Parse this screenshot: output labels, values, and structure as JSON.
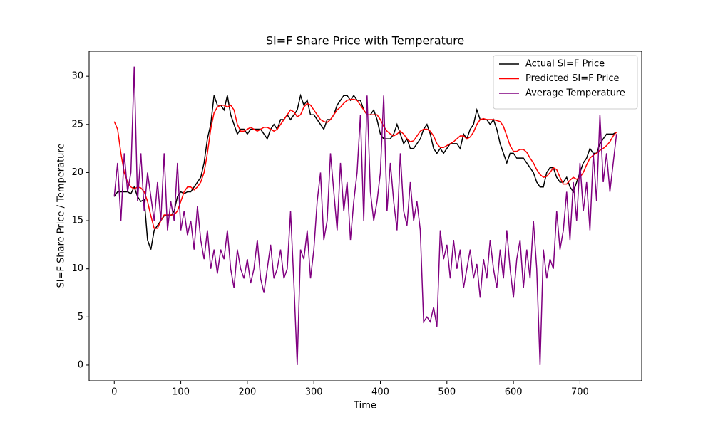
{
  "chart_data": {
    "type": "line",
    "title": "SI=F Share Price with Temperature",
    "xlabel": "Time",
    "ylabel": "SI=F Share Price / Temperature",
    "x": [
      0,
      5,
      10,
      15,
      20,
      25,
      30,
      35,
      40,
      45,
      50,
      55,
      60,
      65,
      70,
      75,
      80,
      85,
      90,
      95,
      100,
      105,
      110,
      115,
      120,
      125,
      130,
      135,
      140,
      145,
      150,
      155,
      160,
      165,
      170,
      175,
      180,
      185,
      190,
      195,
      200,
      205,
      210,
      215,
      220,
      225,
      230,
      235,
      240,
      245,
      250,
      255,
      260,
      265,
      270,
      275,
      280,
      285,
      290,
      295,
      300,
      305,
      310,
      315,
      320,
      325,
      330,
      335,
      340,
      345,
      350,
      355,
      360,
      365,
      370,
      375,
      380,
      385,
      390,
      395,
      400,
      405,
      410,
      415,
      420,
      425,
      430,
      435,
      440,
      445,
      450,
      455,
      460,
      465,
      470,
      475,
      480,
      485,
      490,
      495,
      500,
      505,
      510,
      515,
      520,
      525,
      530,
      535,
      540,
      545,
      550,
      555,
      560,
      565,
      570,
      575,
      580,
      585,
      590,
      595,
      600,
      605,
      610,
      615,
      620,
      625,
      630,
      635,
      640,
      645,
      650,
      655,
      660,
      665,
      670,
      675,
      680,
      685,
      690,
      695,
      700,
      705,
      710,
      715,
      720,
      725,
      730,
      735,
      740,
      745,
      750,
      755
    ],
    "series": [
      {
        "name": "Actual SI=F Price",
        "color": "#000000",
        "values": [
          17.5,
          18,
          18,
          18,
          18,
          17.8,
          18.5,
          17.5,
          17,
          17.2,
          13,
          12,
          14,
          14.5,
          15,
          15.5,
          15.5,
          15.5,
          16,
          17.5,
          18,
          17.8,
          18,
          18,
          18.5,
          19,
          19.5,
          21,
          23.5,
          25,
          28,
          27,
          27,
          26.5,
          28,
          26,
          25,
          24,
          24.5,
          24.5,
          24,
          24.5,
          24.5,
          24.5,
          24.5,
          24,
          23.5,
          24.5,
          25,
          24.5,
          25.5,
          25.5,
          26,
          25.5,
          26,
          26.5,
          28,
          27,
          27.5,
          26,
          26,
          25.5,
          25,
          24.5,
          25.5,
          25.5,
          26,
          27,
          27.5,
          28,
          28,
          27.5,
          28,
          27.5,
          27.5,
          26.5,
          26,
          26,
          26.5,
          25.5,
          24,
          23.5,
          23.5,
          23.5,
          24,
          25,
          24,
          23,
          23.5,
          22.5,
          22.5,
          23,
          23.5,
          24.5,
          25,
          24,
          22.5,
          22,
          22.5,
          22,
          22.5,
          23,
          23,
          23,
          22.5,
          24,
          23.5,
          24.5,
          25,
          26.5,
          25.5,
          25.5,
          25.5,
          25,
          25.5,
          24.5,
          23,
          22,
          21,
          22,
          22,
          21.5,
          21.5,
          21.5,
          21,
          20.5,
          20,
          19,
          18.5,
          18.5,
          20,
          20.5,
          20.5,
          19.5,
          19,
          19,
          19.5,
          18.5,
          18,
          19,
          20,
          21,
          21.5,
          22.5,
          22,
          22,
          23,
          23.5,
          24,
          24,
          24,
          24.2
        ]
      },
      {
        "name": "Predicted SI=F Price",
        "color": "#ff0000",
        "values": [
          25.3,
          24.5,
          22,
          20,
          19,
          18.5,
          18.3,
          18.5,
          18.4,
          18,
          17,
          15.5,
          14.2,
          14.2,
          15,
          15.6,
          15.6,
          15.6,
          15.6,
          16,
          17,
          18,
          18.5,
          18.5,
          18.2,
          18.5,
          19,
          20,
          22,
          24.5,
          26.2,
          26.8,
          27,
          27,
          26.8,
          27,
          26.5,
          25,
          24.3,
          24.3,
          24.5,
          24.7,
          24.5,
          24.3,
          24.5,
          24.7,
          24.7,
          24.5,
          24.3,
          24.5,
          25,
          25.5,
          26,
          26.5,
          26.3,
          25.8,
          26,
          26.8,
          27.2,
          27,
          26.5,
          26,
          25.5,
          25.3,
          25.2,
          25.5,
          26,
          26.5,
          26.8,
          27.2,
          27.5,
          27.6,
          27.6,
          27.5,
          27,
          26.5,
          26,
          26,
          26,
          26,
          25.5,
          24.8,
          24.3,
          24,
          23.8,
          24,
          24.3,
          24,
          23.5,
          23.2,
          23.3,
          23.8,
          24.3,
          24.5,
          24.5,
          24.3,
          23.8,
          23,
          22.6,
          22.6,
          22.8,
          23,
          23.2,
          23.5,
          23.8,
          23.8,
          23.5,
          23.7,
          24.2,
          25,
          25.5,
          25.6,
          25.5,
          25.5,
          25.5,
          25.4,
          25.3,
          24.8,
          23.8,
          22.8,
          22.2,
          22.2,
          22.4,
          22.4,
          22.1,
          21.5,
          21,
          20.3,
          19.8,
          19.5,
          19.6,
          20,
          20.5,
          20.3,
          19.5,
          18.8,
          18.8,
          19.2,
          19.5,
          19.3,
          19.5,
          20,
          20.8,
          21.5,
          21.8,
          22,
          22.3,
          22.5,
          22.8,
          23.2,
          23.8,
          24.2
        ]
      },
      {
        "name": "Average Temperature",
        "color": "#800080",
        "values": [
          17.5,
          21,
          15,
          22,
          18,
          20,
          31,
          17,
          22,
          16,
          20,
          17.5,
          15,
          19,
          15,
          22,
          14,
          17,
          15,
          21,
          14,
          16,
          13.5,
          15,
          12,
          16.5,
          13,
          11,
          14,
          10,
          12,
          9.5,
          12,
          11,
          14,
          10,
          8,
          12,
          10,
          9,
          11,
          8.5,
          10,
          13,
          9,
          7.5,
          10,
          12.5,
          9,
          10,
          12,
          9,
          10,
          16,
          8.5,
          0,
          12,
          11,
          14,
          9,
          12,
          17,
          20,
          13,
          15,
          22,
          18,
          14,
          21,
          16,
          19,
          13,
          17,
          20,
          26,
          15,
          28,
          18,
          15,
          17,
          20,
          28,
          16,
          21,
          17,
          14,
          22,
          16,
          14.5,
          19,
          15,
          17,
          14,
          4.5,
          5,
          4.5,
          6,
          4,
          14,
          11,
          12.5,
          9,
          13,
          10,
          12,
          8,
          10,
          12,
          9,
          10.5,
          7,
          11,
          9,
          13,
          10,
          8,
          12,
          9,
          14,
          10,
          7,
          11,
          13,
          8,
          12,
          9,
          15,
          10,
          0,
          12,
          9,
          11,
          10,
          16,
          12,
          14,
          18,
          13,
          19,
          15,
          21,
          16,
          19,
          14,
          22,
          17,
          26,
          19,
          22,
          18,
          21,
          24
        ]
      }
    ],
    "xlim": [
      -37.8,
      792.8
    ],
    "xticks": [
      0,
      100,
      200,
      300,
      400,
      500,
      600,
      700
    ],
    "ylim": [
      -1.63,
      32.6
    ],
    "yticks": [
      0,
      5,
      10,
      15,
      20,
      25,
      30
    ],
    "legend": "upper right"
  }
}
